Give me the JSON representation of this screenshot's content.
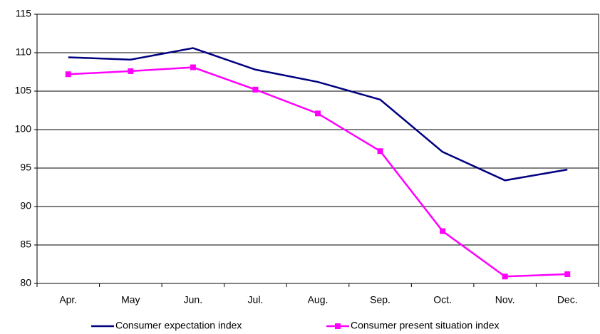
{
  "chart_data": {
    "type": "line",
    "categories": [
      "Apr.",
      "May",
      "Jun.",
      "Jul.",
      "Aug.",
      "Sep.",
      "Oct.",
      "Nov.",
      "Dec."
    ],
    "series": [
      {
        "name": "Consumer expectation index",
        "color": "#000080",
        "marker": false,
        "values": [
          109.4,
          109.1,
          110.6,
          107.8,
          106.2,
          103.9,
          97.1,
          93.4,
          94.8
        ]
      },
      {
        "name": "Consumer present situation index",
        "color": "#ff00ff",
        "marker": true,
        "values": [
          107.2,
          107.6,
          108.1,
          105.2,
          102.1,
          97.2,
          86.8,
          80.9,
          81.2
        ]
      }
    ],
    "ylim": [
      80,
      115
    ],
    "yticks": [
      80,
      85,
      90,
      95,
      100,
      105,
      110,
      115
    ],
    "grid": true,
    "legend": "bottom"
  }
}
